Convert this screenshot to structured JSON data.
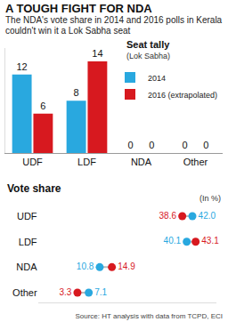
{
  "title": "A TOUGH FIGHT FOR NDA",
  "subtitle": "The NDA's vote share in 2014 and 2016 polls in Kerala couldn't win it a Lok Sabha seat",
  "source": "Source: HT analysis with data from TCPD, ECI",
  "chart_data": [
    {
      "type": "bar",
      "title": "Seat tally",
      "subtitle": "(Lok Sabha)",
      "categories": [
        "UDF",
        "LDF",
        "NDA",
        "Other"
      ],
      "series": [
        {
          "name": "2014",
          "color": "#29a8df",
          "values": [
            12,
            8,
            0,
            0
          ]
        },
        {
          "name": "2016 (extrapolated)",
          "color": "#d7191f",
          "values": [
            6,
            14,
            0,
            0
          ]
        }
      ],
      "ylim": [
        0,
        16
      ],
      "data_labels": true,
      "tick_labels": "x",
      "legend": "top right",
      "grid": false
    },
    {
      "type": "dot",
      "title": "Vote share",
      "xlabel": "(In %)",
      "orientation": "horizontal",
      "categories": [
        "UDF",
        "LDF",
        "NDA",
        "Other"
      ],
      "series": [
        {
          "name": "2014",
          "color": "#29a8df",
          "values": [
            42.0,
            40.1,
            10.8,
            7.1
          ],
          "value_labels": [
            "42.0",
            "40.1",
            "10.8",
            "7.1"
          ]
        },
        {
          "name": "2016 (extrapolated)",
          "color": "#d7191f",
          "values": [
            38.6,
            43.1,
            14.9,
            3.3
          ],
          "value_labels": [
            "38.6",
            "43.1",
            "14.9",
            "3.3"
          ]
        }
      ],
      "xlim": [
        -10,
        50
      ],
      "data_labels": true,
      "tick_labels": "y",
      "grid": false
    }
  ]
}
